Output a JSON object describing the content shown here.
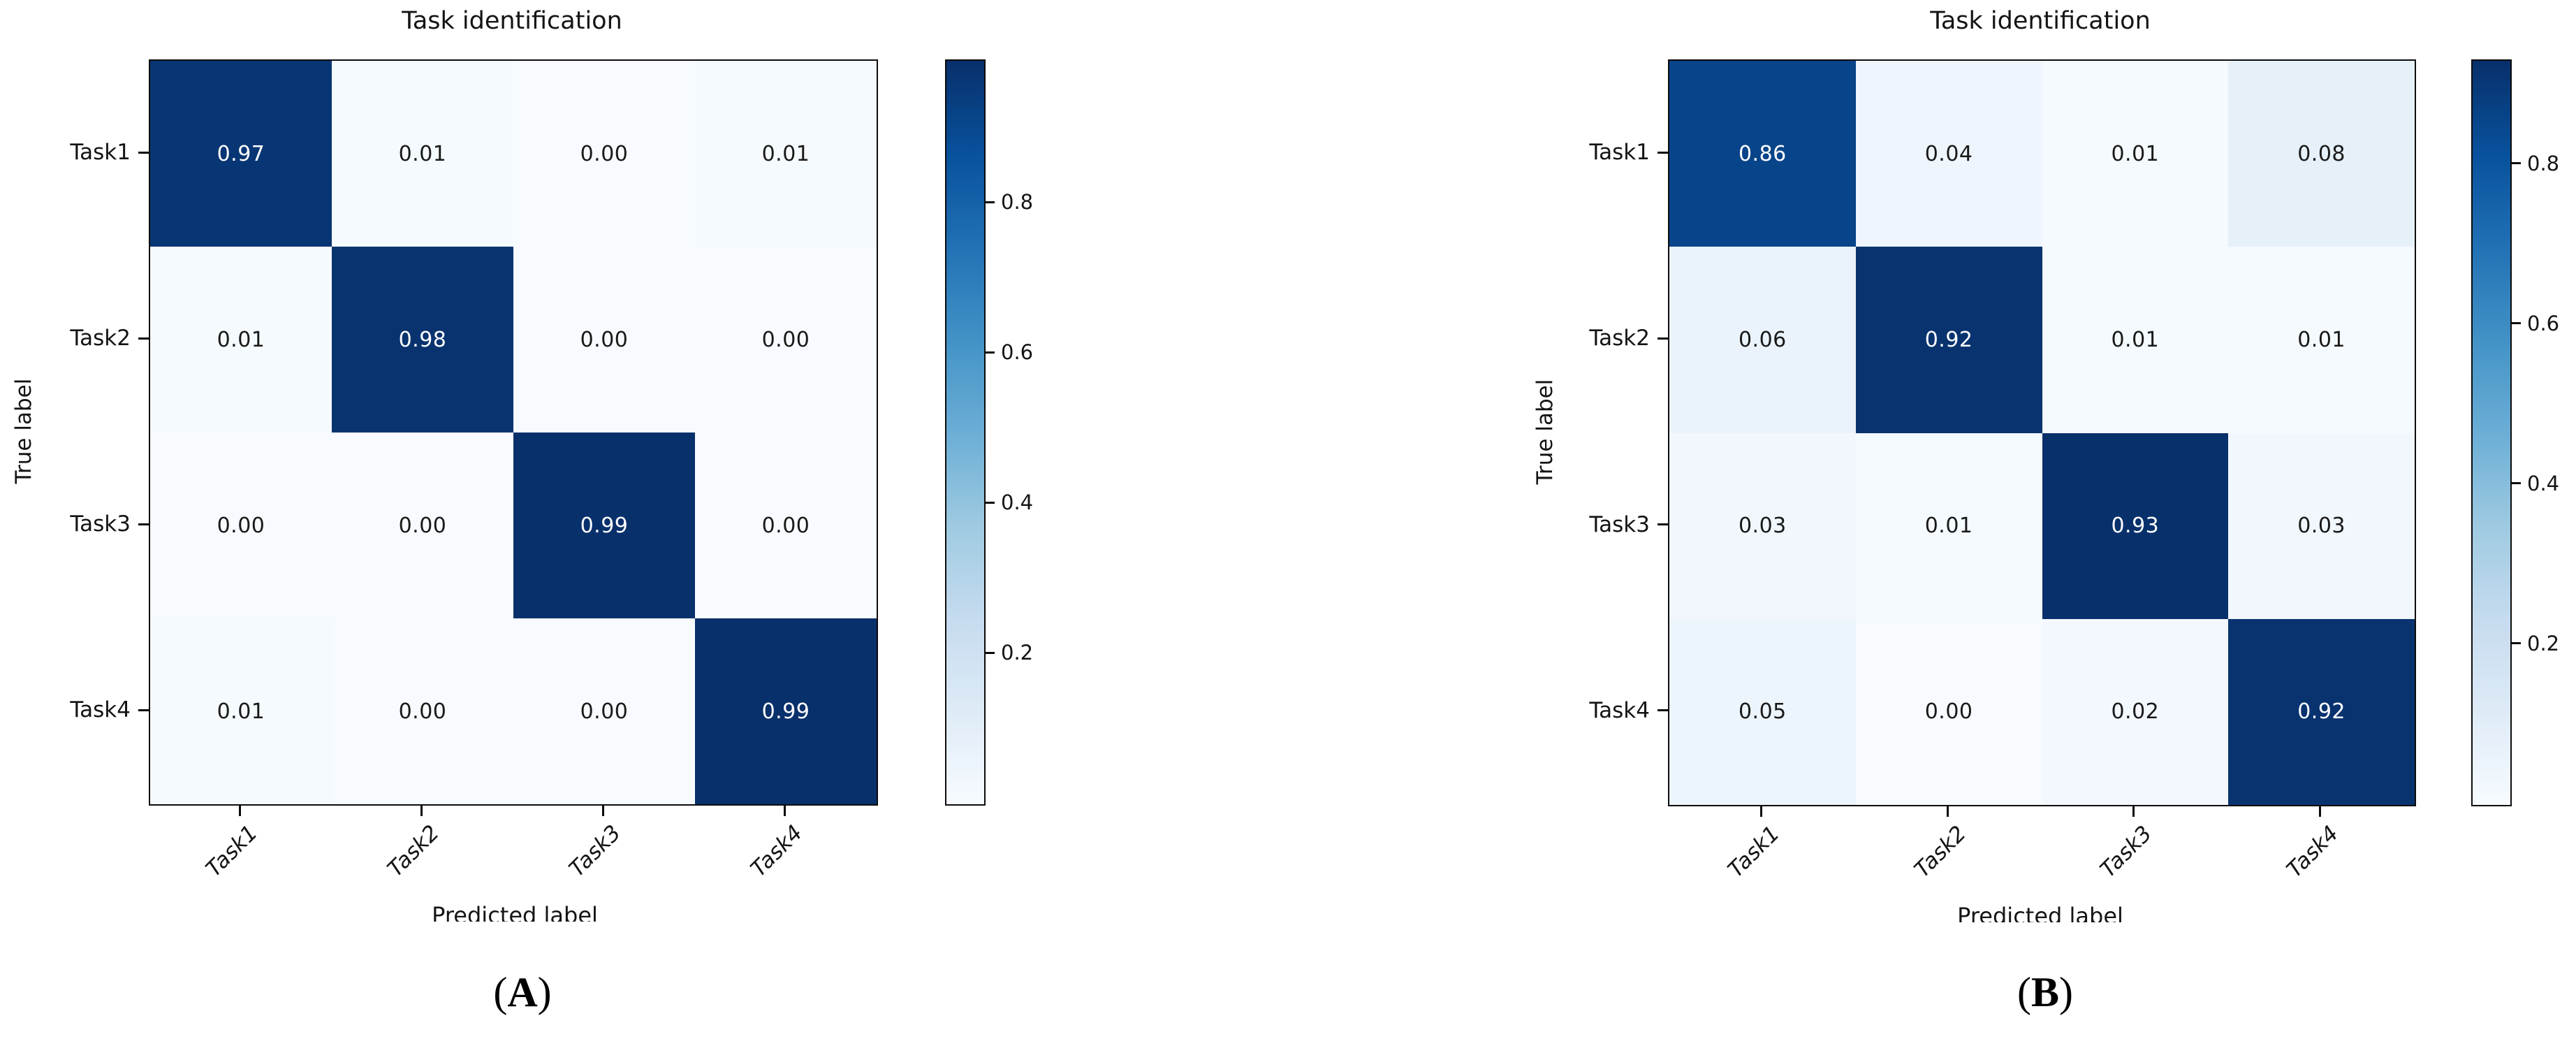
{
  "figure": {
    "background": "#ffffff",
    "text_color": "#141414",
    "heatmap_dark_color": "#08306b",
    "heatmap_light_color": "#f7fbff",
    "cell_text_light": "#ffffff",
    "cell_text_dark": "#191919"
  },
  "chart_data": [
    {
      "type": "heatmap",
      "panel": "A",
      "title": "Task identification",
      "xlabel": "Predicted label",
      "ylabel": "True label",
      "x_categories": [
        "Task1",
        "Task2",
        "Task3",
        "Task4"
      ],
      "y_categories": [
        "Task1",
        "Task2",
        "Task3",
        "Task4"
      ],
      "matrix": [
        [
          0.97,
          0.01,
          0.0,
          0.01
        ],
        [
          0.01,
          0.98,
          0.0,
          0.0
        ],
        [
          0.0,
          0.0,
          0.99,
          0.0
        ],
        [
          0.01,
          0.0,
          0.0,
          0.99
        ]
      ],
      "vmin": 0,
      "vmax": 0.99,
      "colormap": "Blues",
      "colorbar_ticks": [
        0.2,
        0.4,
        0.6,
        0.8
      ],
      "legend_position": "right-colorbar",
      "grid": false,
      "xtick_rotation_deg": 45,
      "caption": {
        "open": "(",
        "letter": "A",
        "close": ")"
      }
    },
    {
      "type": "heatmap",
      "panel": "B",
      "title": "Task identification",
      "xlabel": "Predicted label",
      "ylabel": "True label",
      "x_categories": [
        "Task1",
        "Task2",
        "Task3",
        "Task4"
      ],
      "y_categories": [
        "Task1",
        "Task2",
        "Task3",
        "Task4"
      ],
      "matrix": [
        [
          0.86,
          0.04,
          0.01,
          0.08
        ],
        [
          0.06,
          0.92,
          0.01,
          0.01
        ],
        [
          0.03,
          0.01,
          0.93,
          0.03
        ],
        [
          0.05,
          0.0,
          0.02,
          0.92
        ]
      ],
      "vmin": 0,
      "vmax": 0.93,
      "colormap": "Blues",
      "colorbar_ticks": [
        0.2,
        0.4,
        0.6,
        0.8
      ],
      "legend_position": "right-colorbar",
      "grid": false,
      "xtick_rotation_deg": 45,
      "caption": {
        "open": "(",
        "letter": "B",
        "close": ")"
      }
    }
  ]
}
